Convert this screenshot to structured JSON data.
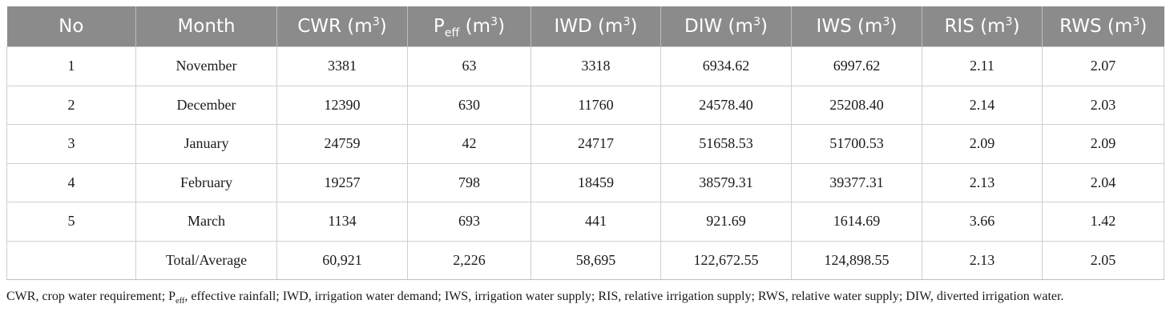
{
  "table": {
    "headers": [
      {
        "name": "No",
        "sup": "",
        "sub": "",
        "rest": ""
      },
      {
        "name": "Month",
        "sup": "",
        "sub": "",
        "rest": ""
      },
      {
        "name": "CWR (m",
        "sup": "3",
        "sub": "",
        "rest": ")"
      },
      {
        "name": "P",
        "sub": "eff",
        "post": " (m",
        "sup": "3",
        "rest": ")"
      },
      {
        "name": "IWD (m",
        "sup": "3",
        "sub": "",
        "rest": ")"
      },
      {
        "name": "DIW (m",
        "sup": "3",
        "sub": "",
        "rest": ")"
      },
      {
        "name": "IWS (m",
        "sup": "3",
        "sub": "",
        "rest": ")"
      },
      {
        "name": "RIS (m",
        "sup": "3",
        "sub": "",
        "rest": ")"
      },
      {
        "name": "RWS (m",
        "sup": "3",
        "sub": "",
        "rest": ")"
      }
    ],
    "rows": [
      [
        "1",
        "November",
        "3381",
        "63",
        "3318",
        "6934.62",
        "6997.62",
        "2.11",
        "2.07"
      ],
      [
        "2",
        "December",
        "12390",
        "630",
        "11760",
        "24578.40",
        "25208.40",
        "2.14",
        "2.03"
      ],
      [
        "3",
        "January",
        "24759",
        "42",
        "24717",
        "51658.53",
        "51700.53",
        "2.09",
        "2.09"
      ],
      [
        "4",
        "February",
        "19257",
        "798",
        "18459",
        "38579.31",
        "39377.31",
        "2.13",
        "2.04"
      ],
      [
        "5",
        "March",
        "1134",
        "693",
        "441",
        "921.69",
        "1614.69",
        "3.66",
        "1.42"
      ],
      [
        "",
        "Total/Average",
        "60,921",
        "2,226",
        "58,695",
        "122,672.55",
        "124,898.55",
        "2.13",
        "2.05"
      ]
    ]
  },
  "footnote": {
    "part1": "CWR, crop water requirement; P",
    "sub": "eff",
    "part2": ", effective rainfall; IWD, irrigation water demand; IWS, irrigation water supply; RIS, relative irrigation supply; RWS, relative water supply; DIW, diverted irrigation water."
  }
}
